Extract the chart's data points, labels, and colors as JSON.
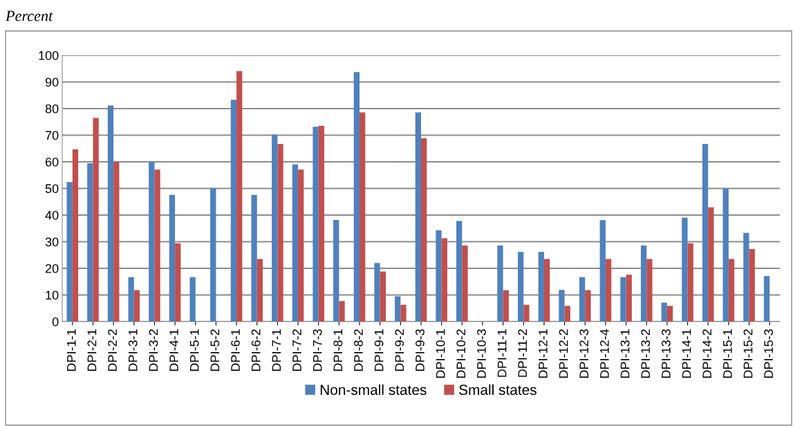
{
  "chart_data": {
    "type": "bar",
    "ylabel": "Percent",
    "categories": [
      "DPI-1-1",
      "DPI-2-1",
      "DPI-2-2",
      "DPI-3-1",
      "DPI-3-2",
      "DPI-4-1",
      "DPI-5-1",
      "DPI-5-2",
      "DPI-6-1",
      "DPI-6-2",
      "DPI-7-1",
      "DPI-7-2",
      "DPI-7-3",
      "DPI-8-1",
      "DPI-8-2",
      "DPI-9-1",
      "DPI-9-2",
      "DPI-9-3",
      "DPI-10-1",
      "DPI-10-2",
      "DPI-10-3",
      "DPI-11-1",
      "DPI-11-2",
      "DPI-12-1",
      "DPI-12-2",
      "DPI-12-3",
      "DPI-12-4",
      "DPI-13-1",
      "DPI-13-2",
      "DPI-13-3",
      "DPI-14-1",
      "DPI-14-2",
      "DPI-15-1",
      "DPI-15-2",
      "DPI-15-3"
    ],
    "series": [
      {
        "name": "Non-small states",
        "color": "#4f81bd",
        "values": [
          52.4,
          59.5,
          81.2,
          16.7,
          60,
          47.6,
          16.7,
          50,
          83.3,
          47.6,
          70.2,
          59,
          73.2,
          38.2,
          93.7,
          22,
          9.5,
          78.6,
          34.3,
          37.8,
          0,
          28.6,
          26.2,
          26.2,
          11.9,
          16.7,
          38.1,
          16.7,
          28.6,
          7.1,
          39,
          66.7,
          50,
          33.3,
          17.1
        ]
      },
      {
        "name": "Small states",
        "color": "#c0504d",
        "values": [
          64.7,
          76.5,
          60,
          11.8,
          57.1,
          29.4,
          0,
          0,
          94.1,
          23.5,
          66.7,
          57.1,
          73.5,
          7.7,
          78.6,
          18.8,
          6.3,
          68.8,
          31.3,
          28.6,
          0,
          11.8,
          6.3,
          23.5,
          5.9,
          11.8,
          23.5,
          17.6,
          23.5,
          5.9,
          29.4,
          42.9,
          23.5,
          27.3,
          0
        ]
      }
    ],
    "ylim": [
      0,
      100
    ],
    "yticks": [
      0,
      10,
      20,
      30,
      40,
      50,
      60,
      70,
      80,
      90,
      100
    ],
    "grid": "y",
    "legend": "bottom"
  }
}
